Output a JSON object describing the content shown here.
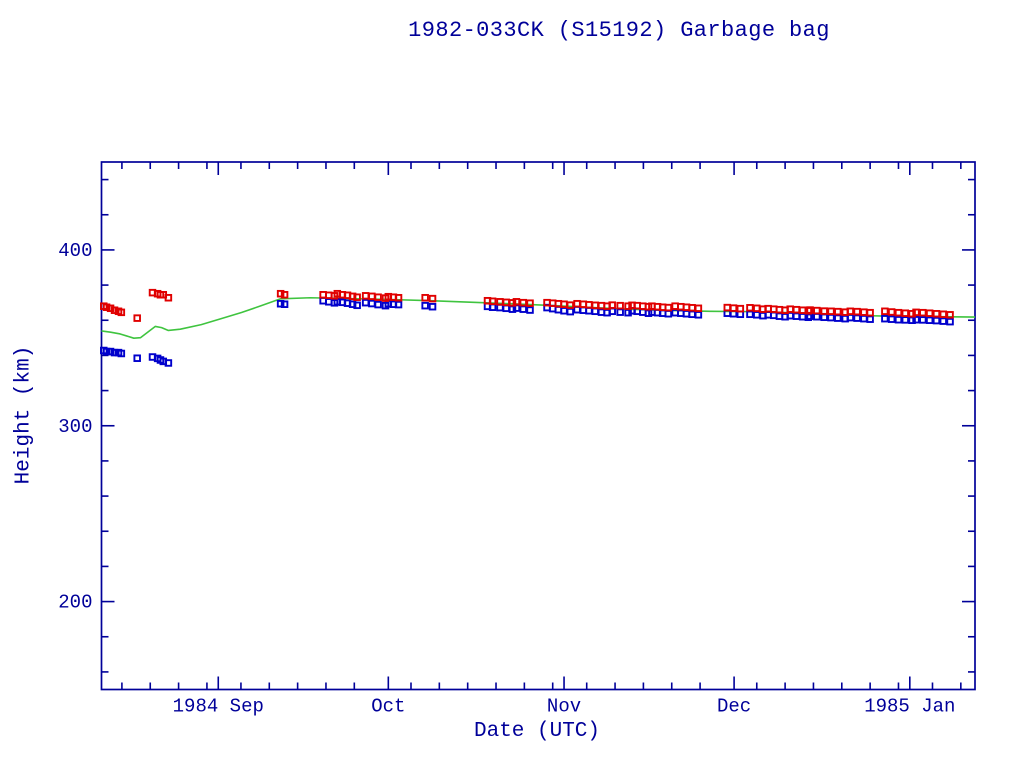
{
  "page": {
    "background": "#ffffff"
  },
  "chart_data": {
    "type": "scatter",
    "title": "1982-033CK (S15192) Garbage bag",
    "xlabel": "Date (UTC)",
    "ylabel": "Height (km)",
    "grid": false,
    "legend": "none",
    "colors": {
      "axis": "#000099",
      "apogee": "#e00000",
      "perigee": "#0000cc",
      "mean": "#3fc43f"
    },
    "x_axis": {
      "unit": "days since 1984 Aug 11 (UTC)",
      "range": [
        0,
        154.1
      ],
      "major_ticks": [
        {
          "day": 20.6,
          "label": "1984 Sep"
        },
        {
          "day": 50.6,
          "label": "Oct"
        },
        {
          "day": 81.6,
          "label": "Nov"
        },
        {
          "day": 111.6,
          "label": "Dec"
        },
        {
          "day": 142.6,
          "label": "1985 Jan"
        }
      ],
      "minor_tick_days": [
        3.6,
        8.6,
        13.6,
        18.6,
        24.6,
        29.6,
        34.6,
        39.6,
        44.6,
        54.6,
        59.6,
        64.6,
        69.6,
        74.6,
        79.6,
        85.6,
        90.6,
        95.6,
        100.6,
        105.6,
        115.6,
        120.6,
        125.6,
        130.6,
        135.6,
        140.6,
        146.6,
        151.6
      ]
    },
    "y_axis": {
      "unit": "km",
      "range": [
        150,
        450
      ],
      "major_ticks": [
        200,
        300,
        400
      ],
      "minor_ticks": [
        160,
        180,
        220,
        240,
        260,
        280,
        320,
        340,
        360,
        380,
        420,
        440
      ]
    },
    "series": [
      {
        "name": "mean-height-green-line",
        "render": "line",
        "color_key": "mean",
        "points": [
          [
            0,
            353.9
          ],
          [
            1.6,
            353.2
          ],
          [
            3.3,
            352.2
          ],
          [
            5.7,
            349.8
          ],
          [
            6.9,
            350.1
          ],
          [
            9.5,
            356.5
          ],
          [
            10.6,
            355.8
          ],
          [
            11.8,
            354.2
          ],
          [
            13.9,
            354.9
          ],
          [
            17.6,
            357.5
          ],
          [
            21.2,
            361.0
          ],
          [
            24.7,
            364.4
          ],
          [
            28.2,
            368.3
          ],
          [
            31.6,
            372.2
          ],
          [
            36.8,
            372.8
          ],
          [
            43.9,
            372.3
          ],
          [
            51.0,
            371.8
          ],
          [
            58.0,
            371.1
          ],
          [
            65.0,
            370.3
          ],
          [
            72.1,
            369.4
          ],
          [
            79.2,
            368.4
          ],
          [
            86.2,
            367.3
          ],
          [
            93.3,
            366.2
          ],
          [
            100.3,
            365.6
          ],
          [
            107.4,
            365.1
          ],
          [
            114.4,
            364.9
          ],
          [
            121.5,
            364.3
          ],
          [
            128.5,
            363.5
          ],
          [
            133.8,
            362.7
          ],
          [
            140.9,
            362.2
          ],
          [
            147.9,
            362.0
          ],
          [
            154.1,
            361.8
          ]
        ]
      },
      {
        "name": "perigee-blue-squares",
        "render": "squares",
        "color_key": "perigee",
        "points": [
          [
            0.4,
            342.8
          ],
          [
            0.9,
            342.2
          ],
          [
            1.6,
            342.2
          ],
          [
            2.3,
            341.6
          ],
          [
            3.0,
            341.6
          ],
          [
            3.5,
            341.1
          ],
          [
            6.3,
            338.4
          ],
          [
            9.0,
            339.1
          ],
          [
            9.9,
            338.3
          ],
          [
            10.4,
            337.4
          ],
          [
            10.9,
            336.6
          ],
          [
            11.8,
            335.7
          ],
          [
            31.6,
            369.4
          ],
          [
            32.3,
            369.1
          ],
          [
            39.1,
            371.1
          ],
          [
            40.1,
            370.5
          ],
          [
            41.1,
            369.9
          ],
          [
            41.6,
            370.5
          ],
          [
            42.5,
            370.2
          ],
          [
            43.4,
            369.7
          ],
          [
            44.3,
            369.1
          ],
          [
            45.1,
            368.5
          ],
          [
            46.6,
            370.0
          ],
          [
            47.7,
            369.5
          ],
          [
            48.8,
            368.9
          ],
          [
            50.1,
            368.3
          ],
          [
            50.6,
            369.4
          ],
          [
            51.5,
            369.1
          ],
          [
            52.4,
            368.9
          ],
          [
            57.1,
            368.3
          ],
          [
            58.4,
            367.7
          ],
          [
            68.1,
            367.9
          ],
          [
            69.0,
            367.4
          ],
          [
            70.3,
            367.2
          ],
          [
            71.4,
            366.8
          ],
          [
            72.5,
            366.3
          ],
          [
            73.2,
            366.9
          ],
          [
            74.4,
            366.3
          ],
          [
            75.6,
            365.8
          ],
          [
            78.6,
            367.2
          ],
          [
            79.6,
            366.6
          ],
          [
            80.6,
            366.0
          ],
          [
            81.6,
            365.4
          ],
          [
            82.7,
            364.9
          ],
          [
            83.9,
            366.0
          ],
          [
            85.0,
            365.7
          ],
          [
            86.0,
            365.4
          ],
          [
            87.1,
            365.1
          ],
          [
            88.2,
            364.6
          ],
          [
            89.2,
            364.3
          ],
          [
            90.1,
            365.1
          ],
          [
            91.5,
            364.6
          ],
          [
            92.9,
            364.3
          ],
          [
            93.6,
            365.4
          ],
          [
            94.5,
            365.1
          ],
          [
            95.5,
            364.6
          ],
          [
            96.5,
            364.0
          ],
          [
            97.1,
            364.6
          ],
          [
            98.1,
            364.3
          ],
          [
            99.0,
            364.0
          ],
          [
            100.0,
            363.7
          ],
          [
            101.2,
            364.3
          ],
          [
            102.2,
            364.0
          ],
          [
            103.2,
            363.7
          ],
          [
            104.2,
            363.4
          ],
          [
            105.3,
            363.1
          ],
          [
            110.4,
            364.0
          ],
          [
            111.5,
            363.7
          ],
          [
            112.7,
            363.4
          ],
          [
            114.4,
            363.4
          ],
          [
            115.6,
            363.1
          ],
          [
            116.7,
            362.6
          ],
          [
            117.6,
            363.1
          ],
          [
            118.6,
            362.8
          ],
          [
            119.6,
            362.3
          ],
          [
            120.6,
            362.0
          ],
          [
            121.5,
            362.6
          ],
          [
            122.6,
            362.3
          ],
          [
            123.7,
            362.0
          ],
          [
            124.7,
            361.7
          ],
          [
            125.0,
            362.3
          ],
          [
            126.2,
            362.0
          ],
          [
            127.5,
            361.7
          ],
          [
            128.7,
            361.5
          ],
          [
            129.9,
            361.2
          ],
          [
            131.2,
            360.9
          ],
          [
            132.1,
            361.5
          ],
          [
            133.3,
            361.2
          ],
          [
            134.5,
            360.9
          ],
          [
            135.6,
            360.6
          ],
          [
            138.2,
            360.9
          ],
          [
            139.4,
            360.6
          ],
          [
            140.6,
            360.3
          ],
          [
            141.8,
            360.2
          ],
          [
            143.0,
            360.0
          ],
          [
            143.7,
            360.3
          ],
          [
            144.9,
            360.2
          ],
          [
            146.1,
            360.0
          ],
          [
            147.3,
            359.8
          ],
          [
            148.5,
            359.5
          ],
          [
            149.7,
            359.2
          ]
        ]
      },
      {
        "name": "apogee-red-squares",
        "render": "squares",
        "color_key": "apogee",
        "points": [
          [
            0.4,
            368.0
          ],
          [
            0.9,
            367.4
          ],
          [
            1.6,
            366.8
          ],
          [
            2.3,
            365.7
          ],
          [
            3.0,
            365.1
          ],
          [
            3.5,
            364.5
          ],
          [
            6.3,
            361.2
          ],
          [
            9.0,
            375.7
          ],
          [
            9.9,
            375.1
          ],
          [
            10.4,
            374.5
          ],
          [
            10.9,
            374.5
          ],
          [
            11.8,
            372.8
          ],
          [
            31.6,
            375.1
          ],
          [
            32.3,
            374.5
          ],
          [
            39.1,
            374.5
          ],
          [
            40.1,
            374.2
          ],
          [
            41.1,
            373.9
          ],
          [
            41.6,
            375.1
          ],
          [
            42.5,
            374.5
          ],
          [
            43.4,
            374.2
          ],
          [
            44.3,
            373.6
          ],
          [
            45.1,
            373.1
          ],
          [
            46.6,
            373.9
          ],
          [
            47.7,
            373.6
          ],
          [
            48.8,
            373.1
          ],
          [
            50.1,
            372.6
          ],
          [
            50.6,
            373.4
          ],
          [
            51.5,
            373.1
          ],
          [
            52.4,
            372.8
          ],
          [
            57.1,
            372.8
          ],
          [
            58.4,
            372.3
          ],
          [
            68.1,
            371.1
          ],
          [
            69.0,
            370.8
          ],
          [
            70.3,
            370.5
          ],
          [
            71.4,
            370.2
          ],
          [
            72.5,
            369.9
          ],
          [
            73.2,
            370.5
          ],
          [
            74.4,
            370.0
          ],
          [
            75.6,
            369.7
          ],
          [
            78.6,
            370.0
          ],
          [
            79.6,
            369.7
          ],
          [
            80.6,
            369.4
          ],
          [
            81.6,
            369.1
          ],
          [
            82.7,
            368.6
          ],
          [
            83.9,
            369.4
          ],
          [
            85.0,
            369.1
          ],
          [
            86.0,
            368.8
          ],
          [
            87.1,
            368.5
          ],
          [
            88.2,
            368.3
          ],
          [
            89.2,
            368.0
          ],
          [
            90.1,
            368.6
          ],
          [
            91.5,
            368.3
          ],
          [
            92.9,
            368.0
          ],
          [
            93.6,
            368.5
          ],
          [
            94.5,
            368.3
          ],
          [
            95.5,
            368.0
          ],
          [
            96.5,
            367.7
          ],
          [
            97.1,
            368.0
          ],
          [
            98.1,
            367.7
          ],
          [
            99.0,
            367.4
          ],
          [
            100.0,
            367.2
          ],
          [
            101.2,
            368.0
          ],
          [
            102.2,
            367.7
          ],
          [
            103.2,
            367.4
          ],
          [
            104.2,
            367.1
          ],
          [
            105.3,
            366.8
          ],
          [
            110.4,
            367.2
          ],
          [
            111.5,
            366.9
          ],
          [
            112.7,
            366.6
          ],
          [
            114.4,
            367.1
          ],
          [
            115.6,
            366.8
          ],
          [
            116.7,
            366.3
          ],
          [
            117.6,
            366.6
          ],
          [
            118.6,
            366.3
          ],
          [
            119.6,
            366.0
          ],
          [
            120.6,
            365.7
          ],
          [
            121.5,
            366.3
          ],
          [
            122.6,
            366.0
          ],
          [
            123.7,
            365.7
          ],
          [
            124.7,
            365.4
          ],
          [
            125.0,
            365.8
          ],
          [
            126.2,
            365.5
          ],
          [
            127.5,
            365.2
          ],
          [
            128.7,
            365.1
          ],
          [
            129.9,
            364.9
          ],
          [
            131.2,
            364.6
          ],
          [
            132.1,
            365.1
          ],
          [
            133.3,
            364.9
          ],
          [
            134.5,
            364.6
          ],
          [
            135.6,
            364.3
          ],
          [
            138.2,
            365.1
          ],
          [
            139.4,
            364.7
          ],
          [
            140.6,
            364.3
          ],
          [
            141.8,
            364.0
          ],
          [
            143.0,
            363.7
          ],
          [
            143.7,
            364.5
          ],
          [
            144.9,
            364.3
          ],
          [
            146.1,
            364.0
          ],
          [
            147.3,
            363.7
          ],
          [
            148.5,
            363.4
          ],
          [
            149.7,
            363.1
          ]
        ]
      }
    ]
  }
}
